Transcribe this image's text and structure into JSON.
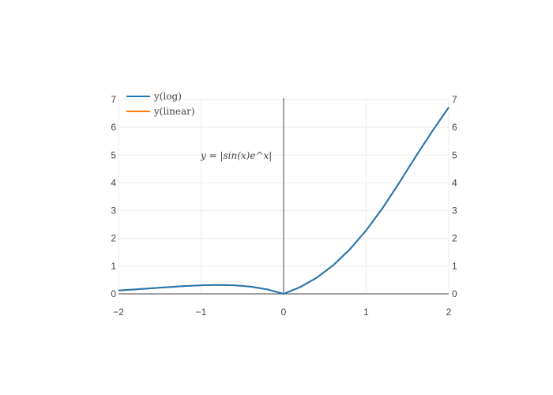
{
  "chart_data": {
    "type": "line",
    "title": "",
    "xlabel": "",
    "ylabel": "",
    "xlim": [
      -2,
      2
    ],
    "ylim": [
      0,
      7
    ],
    "y2lim": [
      0,
      7
    ],
    "x_ticks": [
      "−2",
      "−1",
      "0",
      "1",
      "2"
    ],
    "y_ticks": [
      "0",
      "1",
      "2",
      "3",
      "4",
      "5",
      "6",
      "7"
    ],
    "y2_ticks": [
      "0",
      "1",
      "2",
      "3",
      "4",
      "5",
      "6",
      "7"
    ],
    "grid": true,
    "legend_position": "top-left",
    "annotation": {
      "text": "y = |sin(x)e^x|",
      "x": -0.65,
      "y": 5
    },
    "series": [
      {
        "name": "y(log)",
        "color": "#1f77b4",
        "x": [
          -2,
          -1.8,
          -1.6,
          -1.4,
          -1.2,
          -1,
          -0.8,
          -0.6,
          -0.4,
          -0.2,
          0,
          0.2,
          0.4,
          0.6,
          0.8,
          1,
          1.2,
          1.4,
          1.6,
          1.8,
          2
        ],
        "y": [
          0.123,
          0.161,
          0.202,
          0.243,
          0.28,
          0.31,
          0.322,
          0.31,
          0.261,
          0.163,
          0,
          0.243,
          0.581,
          1.029,
          1.597,
          2.287,
          3.094,
          4.0,
          4.945,
          5.855,
          6.719
        ]
      },
      {
        "name": "y(linear)",
        "color": "#ff7f0e",
        "x": [
          -2,
          -1.8,
          -1.6,
          -1.4,
          -1.2,
          -1,
          -0.8,
          -0.6,
          -0.4,
          -0.2,
          0,
          0.2,
          0.4,
          0.6,
          0.8,
          1,
          1.2,
          1.4,
          1.6,
          1.8,
          2
        ],
        "y": [
          0.123,
          0.161,
          0.202,
          0.243,
          0.28,
          0.31,
          0.322,
          0.31,
          0.261,
          0.163,
          0,
          0.243,
          0.581,
          1.029,
          1.597,
          2.287,
          3.094,
          4.0,
          4.945,
          5.855,
          6.719
        ]
      }
    ]
  }
}
